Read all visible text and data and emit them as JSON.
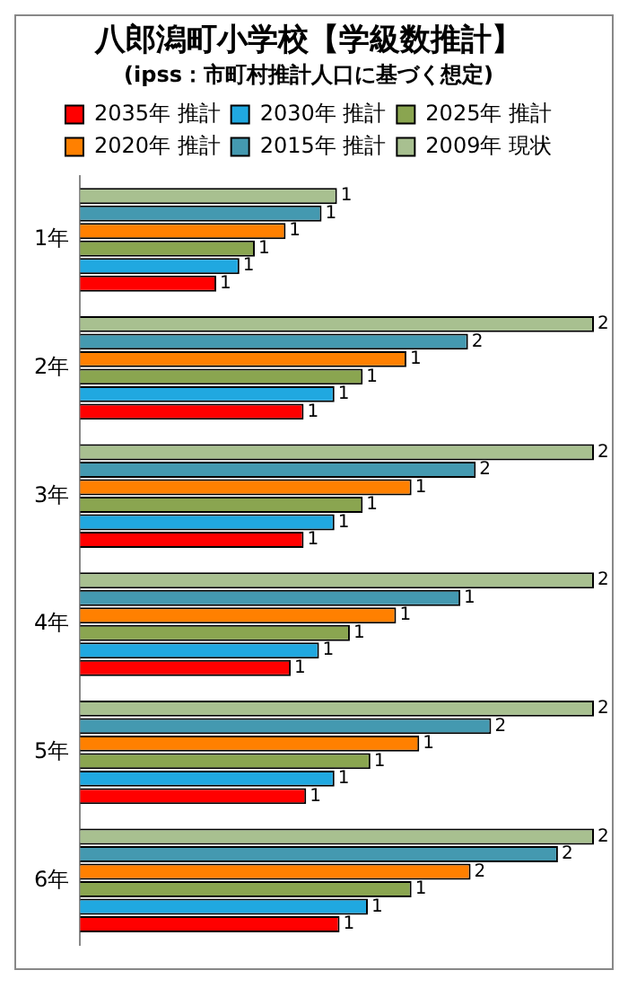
{
  "chart_data": {
    "type": "bar",
    "orientation": "horizontal",
    "title": "八郎潟町小学校【学級数推計】",
    "subtitle": "(ipss：市町村推計人口に基づく想定)",
    "categories": [
      "1年",
      "2年",
      "3年",
      "4年",
      "5年",
      "6年"
    ],
    "legend": "top",
    "grid": false,
    "tick_labels": "y",
    "series": [
      {
        "name": "2009年 現状",
        "color": "#a8c090",
        "values": [
          1.0,
          2.0,
          2.0,
          2.0,
          2.0,
          2.0
        ],
        "value_labels": [
          "1",
          "2",
          "2",
          "2",
          "2",
          "2"
        ]
      },
      {
        "name": "2015年 推計",
        "color": "#4499b0",
        "values": [
          0.94,
          1.51,
          1.54,
          1.48,
          1.6,
          1.86
        ],
        "value_labels": [
          "1",
          "2",
          "2",
          "1",
          "2",
          "2"
        ]
      },
      {
        "name": "2020年 推計",
        "color": "#ff8000",
        "values": [
          0.8,
          1.27,
          1.29,
          1.23,
          1.32,
          1.52
        ],
        "value_labels": [
          "1",
          "1",
          "1",
          "1",
          "1",
          "2"
        ]
      },
      {
        "name": "2025年 推計",
        "color": "#8aa550",
        "values": [
          0.68,
          1.1,
          1.1,
          1.05,
          1.13,
          1.29
        ],
        "value_labels": [
          "1",
          "1",
          "1",
          "1",
          "1",
          "1"
        ]
      },
      {
        "name": "2030年 推計",
        "color": "#20a8e0",
        "values": [
          0.62,
          0.99,
          0.99,
          0.93,
          0.99,
          1.12
        ],
        "value_labels": [
          "1",
          "1",
          "1",
          "1",
          "1",
          "1"
        ]
      },
      {
        "name": "2035年 推計",
        "color": "#ff0000",
        "values": [
          0.53,
          0.87,
          0.87,
          0.82,
          0.88,
          1.01
        ],
        "value_labels": [
          "1",
          "1",
          "1",
          "1",
          "1",
          "1"
        ]
      }
    ]
  }
}
